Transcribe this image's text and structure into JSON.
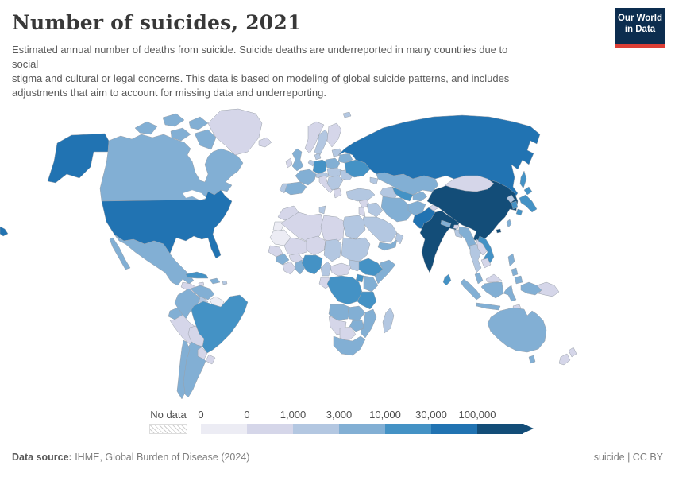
{
  "header": {
    "title": "Number of suicides, 2021",
    "subtitle_lines": [
      "Estimated annual number of deaths from suicide. Suicide deaths are underreported in many countries due to",
      "social",
      "stigma and cultural or legal concerns. This data is based on modeling of global suicide patterns, and includes",
      "adjustments that aim to account for missing data and underreporting."
    ]
  },
  "logo": {
    "line1": "Our World",
    "line2": "in Data",
    "bg": "#0c2d4f",
    "accent": "#dc3e35"
  },
  "legend": {
    "no_data_label": "No data"
  },
  "footer": {
    "source_label": "Data source:",
    "source_text": " IHME, Global Burden of Disease (2024)",
    "right_text": "suicide | CC BY"
  },
  "chart_data": {
    "type": "choropleth_map",
    "title": "Number of suicides, 2021",
    "year": 2021,
    "unit": "estimated suicide deaths per country",
    "legend_thresholds": [
      "0",
      "0",
      "1,000",
      "3,000",
      "10,000",
      "30,000",
      "100,000"
    ],
    "palette": [
      "#ececf4",
      "#d5d6e9",
      "#b3c7e1",
      "#82afd4",
      "#4492c5",
      "#2173b2",
      "#134d78"
    ],
    "no_data_style": "hatched",
    "legend_position": "bottom",
    "region_buckets": {
      "alaska": 5,
      "usa": 5,
      "canada": 3,
      "arctic1": 3,
      "arctic2": 3,
      "arctic3": 3,
      "arctic4": 3,
      "baffin": 3,
      "greenland": 1,
      "mexico": 3,
      "baja": 3,
      "guatemala": 1,
      "nicaragua": 2,
      "cuba": 4,
      "hispaniola": 3,
      "jamaica": 1,
      "puertorico": 2,
      "venezuela": 3,
      "colombia": 3,
      "guyanas": 0,
      "ecuador": 3,
      "peru": 1,
      "brazil": 4,
      "bolivia": 1,
      "paraguay": 1,
      "uruguay": 1,
      "argentina": 3,
      "chile": 3,
      "iceland": 1,
      "uk": 3,
      "ireland": 1,
      "norway": 1,
      "sweden": 2,
      "finland": 1,
      "denmark": 2,
      "baltics": 2,
      "germany": 4,
      "benelux": 2,
      "france": 3,
      "spain": 3,
      "portugal": 2,
      "italy": 1,
      "alpine": 2,
      "poland": 3,
      "czech-hungary": 2,
      "balkans": 2,
      "greece": 1,
      "romania": 2,
      "belarus": 3,
      "ukraine": 4,
      "russia": 5,
      "russia-fragment": 5,
      "svalbard": 2,
      "sakhalin": 4,
      "kazakhstan": 3,
      "caucasus": 2,
      "turkmenistan": 2,
      "uzbekistan": 4,
      "kyrgyz-tajik": 3,
      "turkey": 2,
      "syria": 1,
      "iraq": 2,
      "jordan-israel": 1,
      "iran": 3,
      "saudi": 2,
      "yemen": 3,
      "oman": 2,
      "afghanistan": 3,
      "pakistan": 5,
      "kashmir": 1,
      "india": 6,
      "nepal": 3,
      "bhutan": 1,
      "bangladesh": 2,
      "srilanka": 4,
      "china": 6,
      "mongolia": 1,
      "hongkong": 6,
      "taiwan": 3,
      "nkorea": 2,
      "skorea": 4,
      "japan-hokkaido": 4,
      "japan-honshu": 4,
      "japan-kyushu": 4,
      "myanmar": 3,
      "thailand": 2,
      "laos": 1,
      "vietnam": 4,
      "cambodia": 1,
      "malaysia": 3,
      "sumatra": 3,
      "java": 3,
      "borneo-malay": 1,
      "kalimantan": 3,
      "sulawesi": 3,
      "phil-luzon": 3,
      "phil-visayas": 3,
      "phil-mindanao": 3,
      "westpapua": 3,
      "png": 1,
      "timor": 1,
      "australia": 3,
      "tasmania": 3,
      "nz-north": 1,
      "nz-south": 1,
      "morocco": 1,
      "wsahara": 0,
      "algeria": 1,
      "tunisia": 2,
      "libya": 1,
      "egypt": 2,
      "mauritania": 0,
      "mali": 1,
      "niger": 1,
      "chad": 2,
      "sudan": 2,
      "ssudan": 2,
      "senegal": 1,
      "guinea": 3,
      "ivory": 1,
      "burkina": 1,
      "ghana": 3,
      "nigeria": 4,
      "cameroon": 2,
      "car": 1,
      "gabon-congo": 1,
      "ethiopia": 4,
      "somalia": 3,
      "uganda": 4,
      "kenya": 3,
      "drc": 4,
      "tanzania": 4,
      "angola": 3,
      "zambia": 3,
      "zimbabwe": 3,
      "mozambique": 3,
      "namibia": 1,
      "botswana": 1,
      "southafrica": 3,
      "madagascar": 2
    }
  }
}
